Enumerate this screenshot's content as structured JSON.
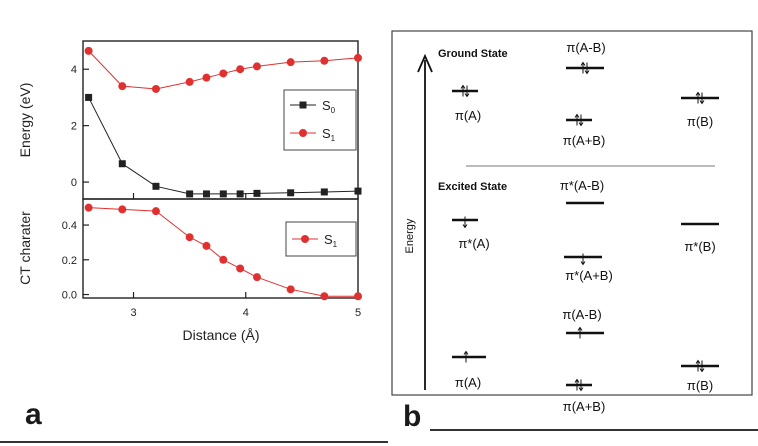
{
  "panel_a": {
    "letter": "a",
    "top": {
      "ylabel": "Energy (eV)",
      "yticks": [
        "0",
        "2",
        "4"
      ],
      "legend": [
        {
          "label": "S",
          "sub": "0",
          "marker": "square",
          "color": "#222222"
        },
        {
          "label": "S",
          "sub": "1",
          "marker": "circle",
          "color": "#e03131"
        }
      ]
    },
    "bottom": {
      "ylabel": "CT charater",
      "yticks": [
        "0.0",
        "0.2",
        "0.4"
      ],
      "legend": [
        {
          "label": "S",
          "sub": "1",
          "marker": "circle",
          "color": "#e03131"
        }
      ]
    },
    "xlabel": "Distance (Å)",
    "xticks": [
      "3",
      "4",
      "5"
    ]
  },
  "panel_b": {
    "letter": "b",
    "axis_label": "Energy",
    "ground_title": "Ground State",
    "excited_title": "Excited State",
    "ground": {
      "left": "π(A)",
      "center_top": "π(A-B)",
      "center_bottom": "π(A+B)",
      "right": "π(B)"
    },
    "excited_upper": {
      "left": "π*(A)",
      "center_top": "π*(A-B)",
      "center_bottom": "π*(A+B)",
      "right": "π*(B)"
    },
    "excited_lower": {
      "left": "π(A)",
      "center_top": "π(A-B)",
      "center_bottom": "π(A+B)",
      "right": "π(B)"
    }
  },
  "chart_data": [
    {
      "type": "line",
      "title": "",
      "xlabel": "",
      "ylabel": "Energy (eV)",
      "xlim": [
        2.55,
        5.0
      ],
      "ylim": [
        -0.6,
        5.0
      ],
      "grid": false,
      "legend_position": "right",
      "x": [
        2.6,
        2.9,
        3.2,
        3.5,
        3.65,
        3.8,
        3.95,
        4.1,
        4.4,
        4.7,
        5.0
      ],
      "series": [
        {
          "name": "S0",
          "color": "#222222",
          "marker": "square",
          "values": [
            3.0,
            0.65,
            -0.15,
            -0.42,
            -0.42,
            -0.42,
            -0.42,
            -0.4,
            -0.38,
            -0.35,
            -0.32
          ]
        },
        {
          "name": "S1",
          "color": "#e03131",
          "marker": "circle",
          "values": [
            4.65,
            3.4,
            3.3,
            3.55,
            3.7,
            3.85,
            4.0,
            4.1,
            4.25,
            4.3,
            4.4
          ]
        }
      ]
    },
    {
      "type": "line",
      "title": "",
      "xlabel": "Distance (Å)",
      "ylabel": "CT charater",
      "xlim": [
        2.55,
        5.0
      ],
      "ylim": [
        -0.02,
        0.55
      ],
      "grid": false,
      "legend_position": "right",
      "x": [
        2.6,
        2.9,
        3.2,
        3.5,
        3.65,
        3.8,
        3.95,
        4.1,
        4.4,
        4.7,
        5.0
      ],
      "series": [
        {
          "name": "S1",
          "color": "#e03131",
          "marker": "circle",
          "values": [
            0.5,
            0.49,
            0.48,
            0.33,
            0.28,
            0.2,
            0.15,
            0.1,
            0.03,
            -0.01,
            -0.01
          ]
        }
      ]
    }
  ]
}
